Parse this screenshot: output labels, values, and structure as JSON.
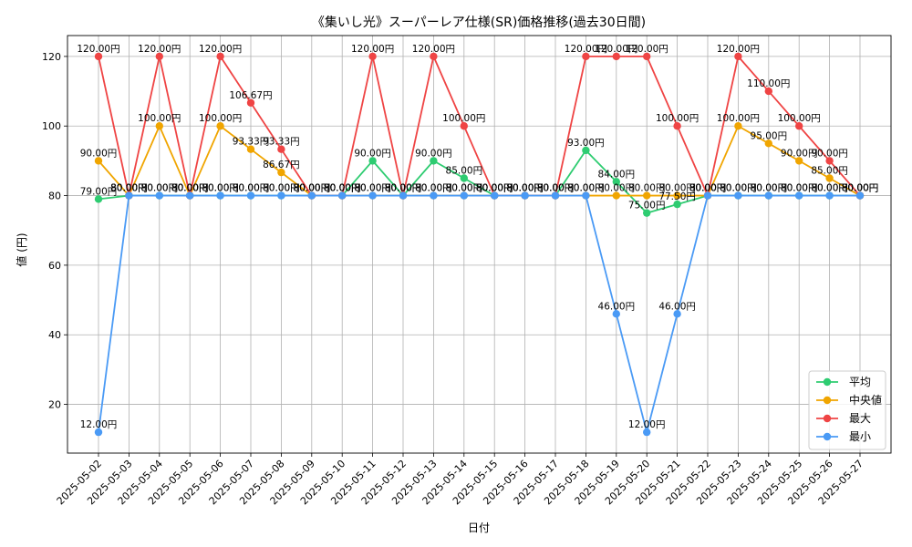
{
  "chart_data": {
    "type": "line",
    "title": "《集いし光》スーパーレア仕様(SR)価格推移(過去30日間)",
    "xlabel": "日付",
    "ylabel": "値 (円)",
    "ylim": [
      6,
      126
    ],
    "yticks": [
      20,
      40,
      60,
      80,
      100,
      120
    ],
    "grid": true,
    "legend_position": "lower-right",
    "label_suffix": "円",
    "categories": [
      "2025-05-02",
      "2025-05-03",
      "2025-05-04",
      "2025-05-05",
      "2025-05-06",
      "2025-05-07",
      "2025-05-08",
      "2025-05-09",
      "2025-05-10",
      "2025-05-11",
      "2025-05-12",
      "2025-05-13",
      "2025-05-14",
      "2025-05-15",
      "2025-05-16",
      "2025-05-17",
      "2025-05-18",
      "2025-05-19",
      "2025-05-20",
      "2025-05-21",
      "2025-05-22",
      "2025-05-23",
      "2025-05-24",
      "2025-05-25",
      "2025-05-26",
      "2025-05-27"
    ],
    "series": [
      {
        "name": "平均",
        "color": "#2ecc71",
        "values": [
          79,
          80,
          80,
          80,
          80,
          80,
          80,
          80,
          80,
          90,
          80,
          90,
          85,
          80,
          80,
          80,
          93,
          84,
          75,
          77.5,
          80,
          80,
          80,
          80,
          80,
          80
        ]
      },
      {
        "name": "中央値",
        "color": "#f0a500",
        "values": [
          90,
          80,
          100,
          80,
          100,
          93.33,
          86.67,
          80,
          80,
          80,
          80,
          80,
          80,
          80,
          80,
          80,
          80,
          80,
          80,
          80,
          80,
          100,
          95,
          90,
          85,
          80
        ]
      },
      {
        "name": "最大",
        "color": "#ef4444",
        "values": [
          120,
          80,
          120,
          80,
          120,
          106.67,
          93.33,
          80,
          80,
          120,
          80,
          120,
          100,
          80,
          80,
          80,
          120,
          120,
          120,
          100,
          80,
          120,
          110,
          100,
          90,
          80
        ]
      },
      {
        "name": "最小",
        "color": "#4a9af5",
        "values": [
          12,
          80,
          80,
          80,
          80,
          80,
          80,
          80,
          80,
          80,
          80,
          80,
          80,
          80,
          80,
          80,
          80,
          46,
          12,
          46,
          80,
          80,
          80,
          80,
          80,
          80
        ]
      }
    ]
  }
}
